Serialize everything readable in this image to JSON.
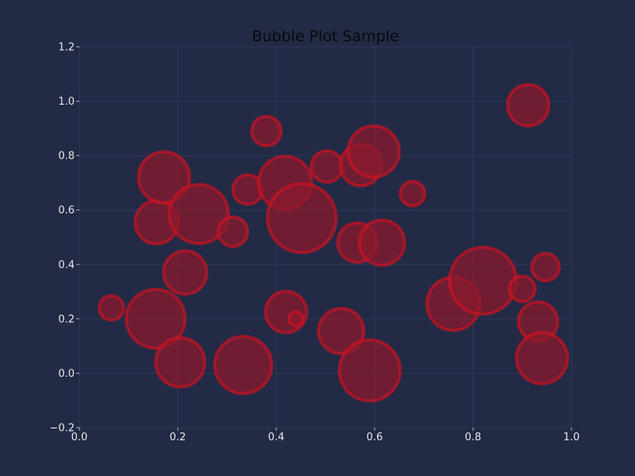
{
  "chart_data": {
    "type": "scatter",
    "title": "Bubble Plot Sample",
    "xlabel": "",
    "ylabel": "",
    "xlim": [
      0.0,
      1.0
    ],
    "ylim": [
      -0.2,
      1.2
    ],
    "xticks": [
      "0.0",
      "0.2",
      "0.4",
      "0.6",
      "0.8",
      "1.0"
    ],
    "yticks": [
      "−0.2",
      "0.0",
      "0.2",
      "0.4",
      "0.6",
      "0.8",
      "1.0",
      "1.2"
    ],
    "grid": true,
    "colors": {
      "background": "#222a45",
      "bubble_fill": "#8b1a2e",
      "bubble_edge": "#d81020"
    },
    "points": [
      {
        "x": 0.065,
        "y": 0.24,
        "size": 0.025
      },
      {
        "x": 0.155,
        "y": 0.2,
        "size": 0.06
      },
      {
        "x": 0.205,
        "y": 0.04,
        "size": 0.05
      },
      {
        "x": 0.215,
        "y": 0.37,
        "size": 0.044
      },
      {
        "x": 0.157,
        "y": 0.555,
        "size": 0.044
      },
      {
        "x": 0.172,
        "y": 0.72,
        "size": 0.052
      },
      {
        "x": 0.243,
        "y": 0.585,
        "size": 0.06
      },
      {
        "x": 0.312,
        "y": 0.52,
        "size": 0.03
      },
      {
        "x": 0.342,
        "y": 0.675,
        "size": 0.03
      },
      {
        "x": 0.38,
        "y": 0.89,
        "size": 0.03
      },
      {
        "x": 0.333,
        "y": 0.03,
        "size": 0.058
      },
      {
        "x": 0.42,
        "y": 0.225,
        "size": 0.042
      },
      {
        "x": 0.44,
        "y": 0.2,
        "size": 0.014
      },
      {
        "x": 0.418,
        "y": 0.7,
        "size": 0.054
      },
      {
        "x": 0.452,
        "y": 0.57,
        "size": 0.07
      },
      {
        "x": 0.503,
        "y": 0.76,
        "size": 0.032
      },
      {
        "x": 0.532,
        "y": 0.155,
        "size": 0.046
      },
      {
        "x": 0.565,
        "y": 0.48,
        "size": 0.04
      },
      {
        "x": 0.572,
        "y": 0.765,
        "size": 0.042
      },
      {
        "x": 0.59,
        "y": 0.01,
        "size": 0.062
      },
      {
        "x": 0.598,
        "y": 0.815,
        "size": 0.052
      },
      {
        "x": 0.615,
        "y": 0.48,
        "size": 0.046
      },
      {
        "x": 0.677,
        "y": 0.66,
        "size": 0.025
      },
      {
        "x": 0.76,
        "y": 0.255,
        "size": 0.054
      },
      {
        "x": 0.82,
        "y": 0.34,
        "size": 0.068
      },
      {
        "x": 0.9,
        "y": 0.31,
        "size": 0.026
      },
      {
        "x": 0.912,
        "y": 0.985,
        "size": 0.042
      },
      {
        "x": 0.932,
        "y": 0.19,
        "size": 0.04
      },
      {
        "x": 0.947,
        "y": 0.39,
        "size": 0.028
      },
      {
        "x": 0.94,
        "y": 0.055,
        "size": 0.052
      }
    ]
  }
}
